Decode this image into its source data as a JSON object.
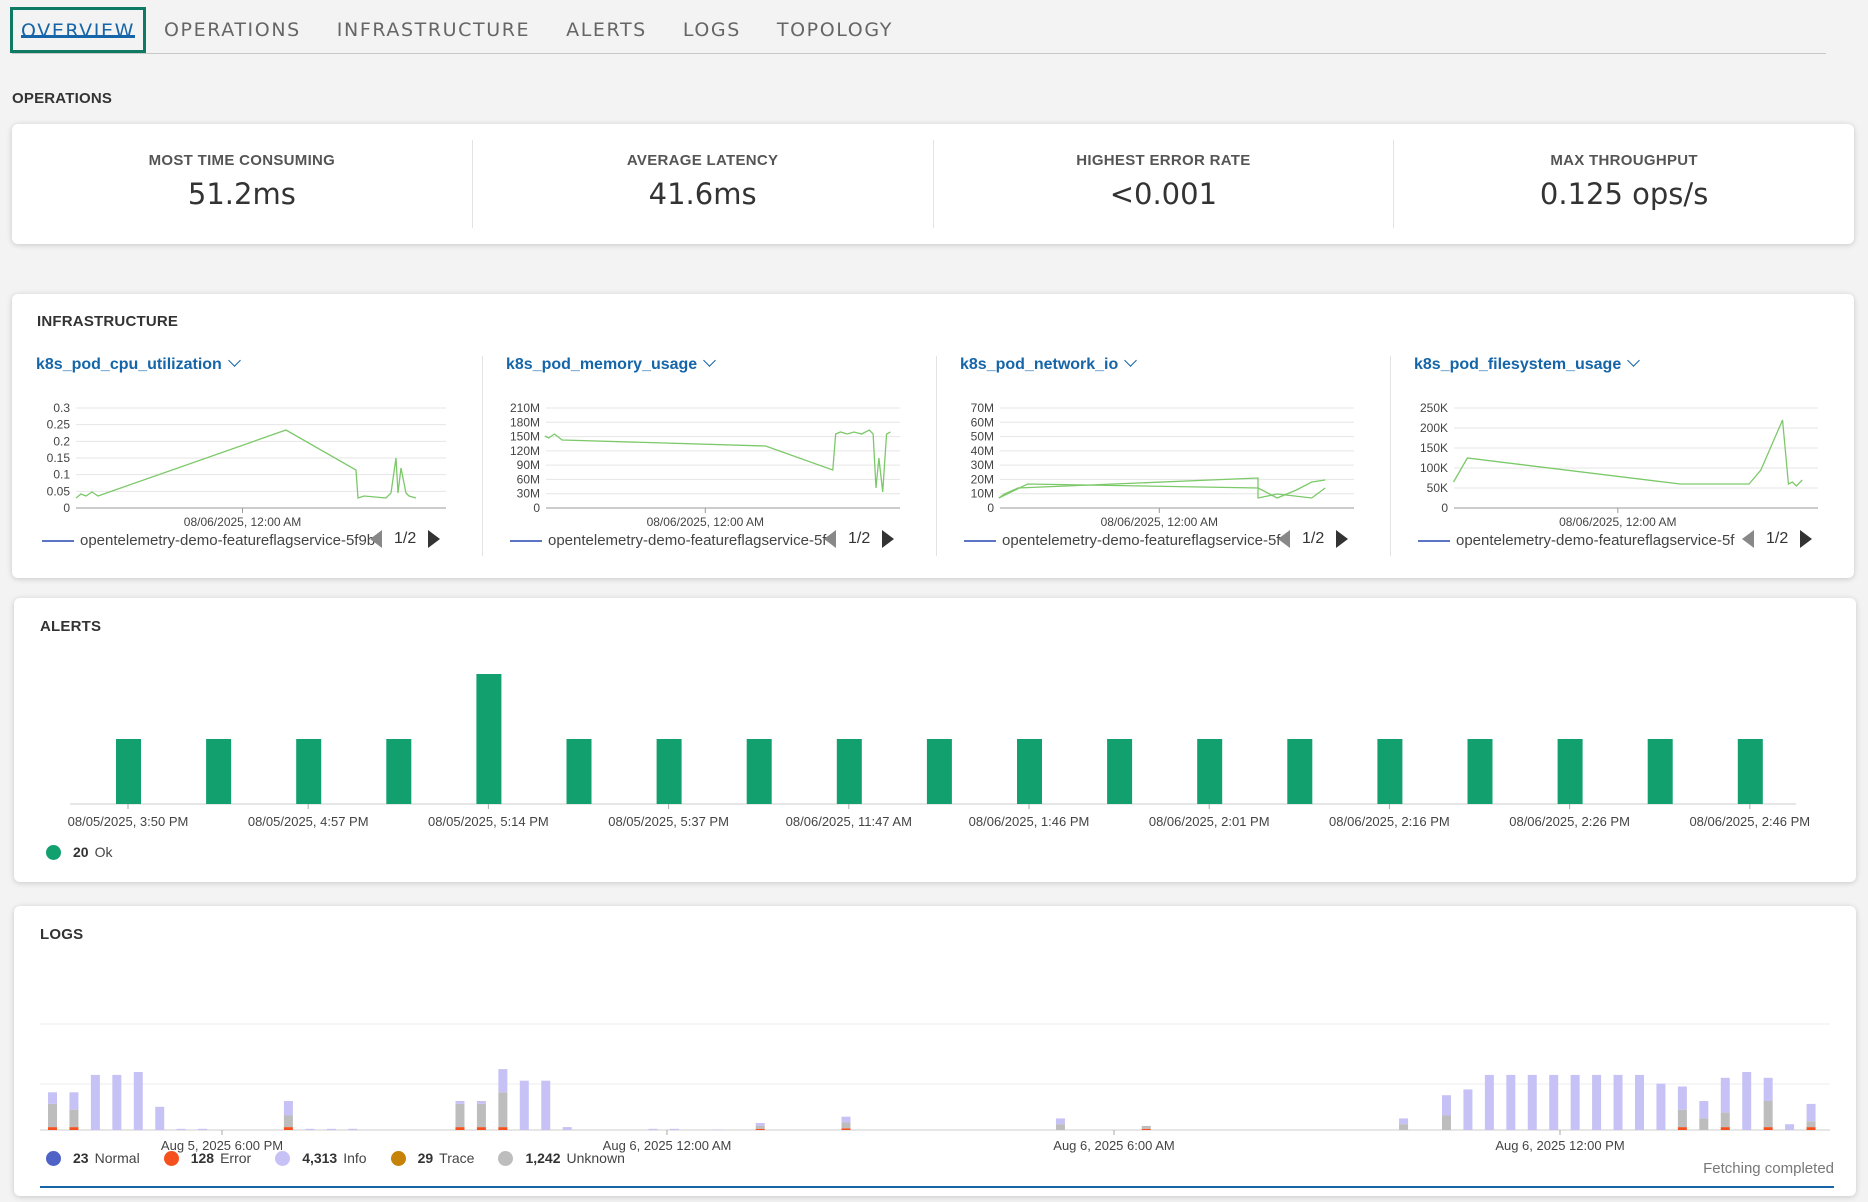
{
  "tabs": [
    {
      "label": "OVERVIEW",
      "active": true
    },
    {
      "label": "OPERATIONS"
    },
    {
      "label": "INFRASTRUCTURE"
    },
    {
      "label": "ALERTS"
    },
    {
      "label": "LOGS"
    },
    {
      "label": "TOPOLOGY"
    }
  ],
  "operations": {
    "title": "OPERATIONS",
    "stats": [
      {
        "label": "MOST TIME CONSUMING",
        "value": "51.2ms"
      },
      {
        "label": "AVERAGE LATENCY",
        "value": "41.6ms"
      },
      {
        "label": "HIGHEST ERROR RATE",
        "value": "<0.001"
      },
      {
        "label": "MAX THROUGHPUT",
        "value": "0.125 ops/s"
      }
    ]
  },
  "infrastructure": {
    "title": "INFRASTRUCTURE",
    "metrics": [
      {
        "name": "k8s_pod_cpu_utilization",
        "legend": "opentelemetry-demo-featureflagservice-5f9b",
        "page": "1/2",
        "xtick": "08/06/2025, 12:00 AM",
        "yticks": [
          "0.3",
          "0.25",
          "0.2",
          "0.15",
          "0.1",
          "0.05",
          "0"
        ]
      },
      {
        "name": "k8s_pod_memory_usage",
        "legend": "opentelemetry-demo-featureflagservice-5f",
        "page": "1/2",
        "xtick": "08/06/2025, 12:00 AM",
        "yticks": [
          "210M",
          "180M",
          "150M",
          "120M",
          "90M",
          "60M",
          "30M",
          "0"
        ]
      },
      {
        "name": "k8s_pod_network_io",
        "legend": "opentelemetry-demo-featureflagservice-5f",
        "page": "1/2",
        "xtick": "08/06/2025, 12:00 AM",
        "yticks": [
          "70M",
          "60M",
          "50M",
          "40M",
          "30M",
          "20M",
          "10M",
          "0"
        ]
      },
      {
        "name": "k8s_pod_filesystem_usage",
        "legend": "opentelemetry-demo-featureflagservice-5f",
        "page": "1/2",
        "xtick": "08/06/2025, 12:00 AM",
        "yticks": [
          "250K",
          "200K",
          "150K",
          "100K",
          "50K",
          "0"
        ]
      }
    ]
  },
  "alerts": {
    "title": "ALERTS",
    "legend": {
      "count": "20",
      "label": "Ok"
    },
    "colors": {
      "ok": "#12a06e"
    }
  },
  "logs": {
    "title": "LOGS",
    "xticks": [
      "Aug 5, 2025 6:00 PM",
      "Aug 6, 2025 12:00 AM",
      "Aug 6, 2025 6:00 AM",
      "Aug 6, 2025 12:00 PM"
    ],
    "legend": [
      {
        "count": "23",
        "label": "Normal",
        "color": "#4f63c6"
      },
      {
        "count": "128",
        "label": "Error",
        "color": "#f4511e"
      },
      {
        "count": "4,313",
        "label": "Info",
        "color": "#c7c2f5"
      },
      {
        "count": "29",
        "label": "Trace",
        "color": "#c7820a"
      },
      {
        "count": "1,242",
        "label": "Unknown",
        "color": "#bdbdbd"
      }
    ],
    "status": "Fetching completed"
  },
  "chart_data": [
    {
      "type": "bar",
      "title": "ALERTS",
      "categories": [
        "08/05/2025, 3:50 PM",
        "",
        "08/05/2025, 4:57 PM",
        "",
        "08/05/2025, 5:14 PM",
        "",
        "08/05/2025, 5:37 PM",
        "",
        "08/06/2025, 11:47 AM",
        "",
        "08/06/2025, 1:46 PM",
        "",
        "08/06/2025, 2:01 PM",
        "",
        "08/06/2025, 2:16 PM",
        "",
        "08/06/2025, 2:26 PM",
        "",
        "08/06/2025, 2:46 PM"
      ],
      "series": [
        {
          "name": "Ok",
          "values": [
            1,
            1,
            1,
            1,
            2,
            1,
            1,
            1,
            1,
            1,
            1,
            1,
            1,
            1,
            1,
            1,
            1,
            1,
            1
          ]
        }
      ],
      "ylim": [
        0,
        2.2
      ]
    },
    {
      "type": "bar",
      "title": "LOGS",
      "stacked": true,
      "x_ticks": [
        "Aug 5, 2025 6:00 PM",
        "Aug 6, 2025 12:00 AM",
        "Aug 6, 2025 6:00 AM",
        "Aug 6, 2025 12:00 PM"
      ],
      "series": [
        {
          "name": "Info",
          "values": [
            20,
            30,
            95,
            95,
            100,
            40,
            2,
            2,
            0,
            0,
            0,
            25,
            2,
            2,
            2,
            0,
            0,
            0,
            0,
            5,
            5,
            40,
            85,
            85,
            5,
            0,
            0,
            0,
            2,
            2,
            0,
            1,
            0,
            5,
            0,
            0,
            0,
            10,
            0,
            0,
            0,
            0,
            0,
            0,
            0,
            0,
            0,
            10,
            0,
            0,
            0,
            0,
            0,
            0,
            0,
            0,
            0,
            0,
            0,
            0,
            0,
            0,
            0,
            10,
            0,
            35,
            70,
            95,
            95,
            95,
            95,
            95,
            95,
            95,
            95,
            80,
            40,
            30,
            60,
            100,
            40,
            10,
            30
          ]
        },
        {
          "name": "Unknown",
          "values": [
            40,
            30,
            0,
            0,
            0,
            0,
            0,
            0,
            0,
            0,
            0,
            20,
            0,
            0,
            0,
            0,
            0,
            0,
            0,
            40,
            40,
            60,
            0,
            0,
            0,
            0,
            0,
            0,
            0,
            0,
            0,
            0,
            0,
            5,
            0,
            0,
            0,
            10,
            0,
            0,
            0,
            0,
            0,
            0,
            0,
            0,
            0,
            10,
            0,
            0,
            0,
            5,
            0,
            0,
            0,
            0,
            0,
            0,
            0,
            0,
            0,
            0,
            0,
            10,
            0,
            25,
            0,
            0,
            0,
            0,
            0,
            0,
            0,
            0,
            0,
            0,
            30,
            20,
            25,
            0,
            45,
            0,
            10
          ]
        },
        {
          "name": "Error",
          "values": [
            5,
            5,
            0,
            0,
            0,
            0,
            0,
            0,
            0,
            0,
            0,
            5,
            0,
            0,
            0,
            0,
            0,
            0,
            0,
            5,
            5,
            5,
            0,
            0,
            0,
            0,
            0,
            0,
            0,
            0,
            0,
            0,
            0,
            2,
            0,
            0,
            0,
            3,
            0,
            0,
            0,
            0,
            0,
            0,
            0,
            0,
            0,
            0,
            0,
            0,
            0,
            2,
            0,
            0,
            0,
            0,
            0,
            0,
            0,
            0,
            0,
            0,
            0,
            0,
            0,
            0,
            0,
            0,
            0,
            0,
            0,
            0,
            0,
            0,
            0,
            0,
            5,
            0,
            5,
            0,
            5,
            0,
            5
          ]
        }
      ]
    }
  ]
}
